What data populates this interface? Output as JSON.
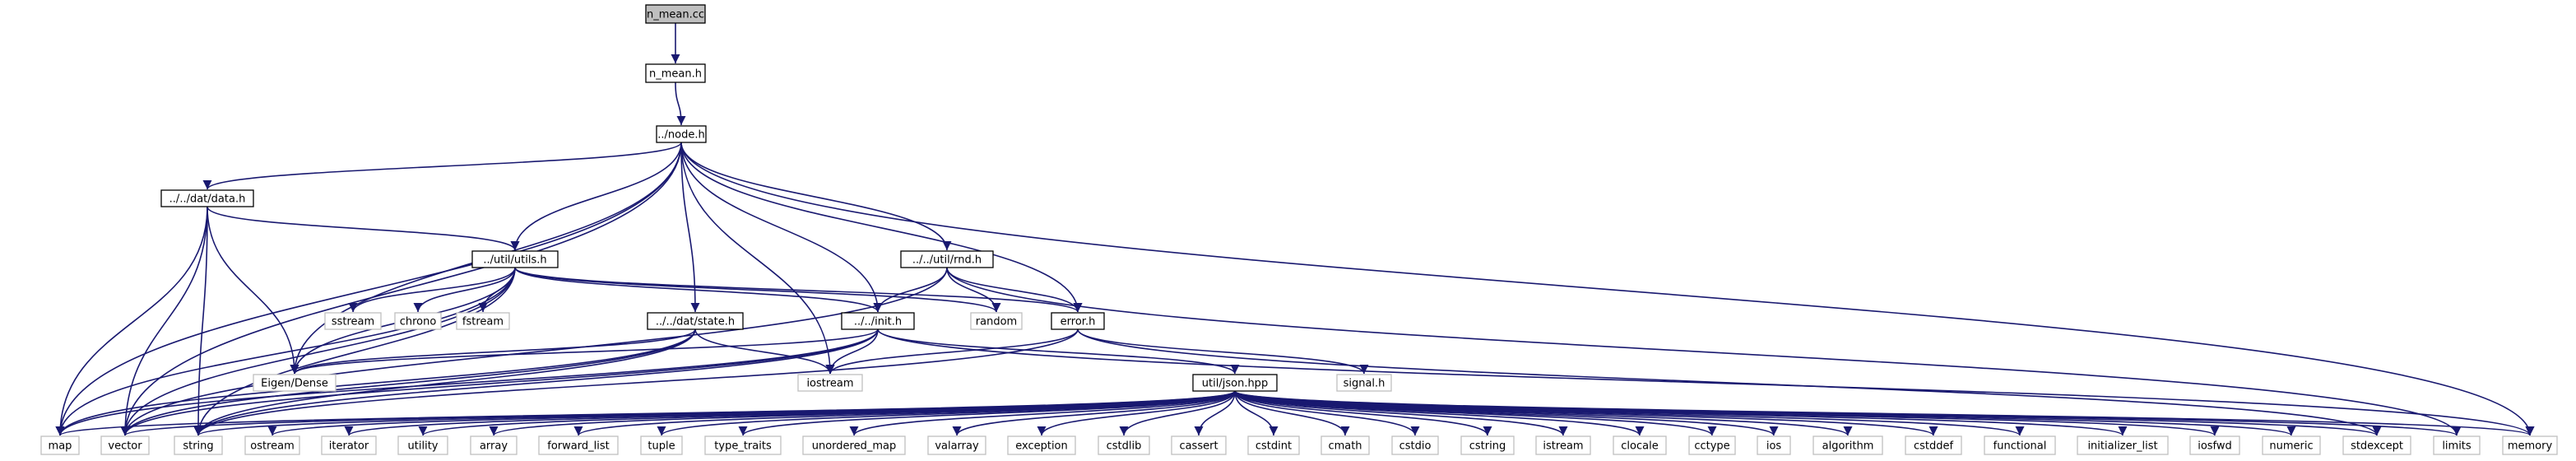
{
  "diagram": {
    "type": "include-dependency-graph",
    "colors": {
      "root_fill": "#bfbfbf",
      "node_fill": "#ffffff",
      "node_border": "#000000",
      "external_border": "#bfbfbf",
      "edge": "#191970"
    },
    "nodes": [
      {
        "id": "n_mean_cc",
        "label": "n_mean.cc",
        "kind": "root"
      },
      {
        "id": "n_mean_h",
        "label": "n_mean.h",
        "kind": "file"
      },
      {
        "id": "node_h",
        "label": "../node.h",
        "kind": "file"
      },
      {
        "id": "data_h",
        "label": "../../dat/data.h",
        "kind": "file"
      },
      {
        "id": "utils_h",
        "label": "../util/utils.h",
        "kind": "file"
      },
      {
        "id": "rnd_h",
        "label": "../../util/rnd.h",
        "kind": "file"
      },
      {
        "id": "state_h",
        "label": "../../dat/state.h",
        "kind": "file"
      },
      {
        "id": "init_h",
        "label": "../../init.h",
        "kind": "file"
      },
      {
        "id": "error_h",
        "label": "error.h",
        "kind": "file"
      },
      {
        "id": "json_hpp",
        "label": "util/json.hpp",
        "kind": "file"
      },
      {
        "id": "sstream",
        "label": "sstream",
        "kind": "system"
      },
      {
        "id": "chrono",
        "label": "chrono",
        "kind": "system"
      },
      {
        "id": "fstream",
        "label": "fstream",
        "kind": "system"
      },
      {
        "id": "random",
        "label": "random",
        "kind": "system"
      },
      {
        "id": "eigen",
        "label": "Eigen/Dense",
        "kind": "system"
      },
      {
        "id": "iostream",
        "label": "iostream",
        "kind": "system"
      },
      {
        "id": "signal_h",
        "label": "signal.h",
        "kind": "system"
      },
      {
        "id": "map",
        "label": "map",
        "kind": "system"
      },
      {
        "id": "vector",
        "label": "vector",
        "kind": "system"
      },
      {
        "id": "string",
        "label": "string",
        "kind": "system"
      },
      {
        "id": "ostream",
        "label": "ostream",
        "kind": "system"
      },
      {
        "id": "iterator",
        "label": "iterator",
        "kind": "system"
      },
      {
        "id": "utility",
        "label": "utility",
        "kind": "system"
      },
      {
        "id": "array",
        "label": "array",
        "kind": "system"
      },
      {
        "id": "forward_list",
        "label": "forward_list",
        "kind": "system"
      },
      {
        "id": "tuple",
        "label": "tuple",
        "kind": "system"
      },
      {
        "id": "type_traits",
        "label": "type_traits",
        "kind": "system"
      },
      {
        "id": "unordered_map",
        "label": "unordered_map",
        "kind": "system"
      },
      {
        "id": "valarray",
        "label": "valarray",
        "kind": "system"
      },
      {
        "id": "exception",
        "label": "exception",
        "kind": "system"
      },
      {
        "id": "cstdlib",
        "label": "cstdlib",
        "kind": "system"
      },
      {
        "id": "cassert",
        "label": "cassert",
        "kind": "system"
      },
      {
        "id": "cstdint",
        "label": "cstdint",
        "kind": "system"
      },
      {
        "id": "cmath",
        "label": "cmath",
        "kind": "system"
      },
      {
        "id": "cstdio",
        "label": "cstdio",
        "kind": "system"
      },
      {
        "id": "cstring",
        "label": "cstring",
        "kind": "system"
      },
      {
        "id": "istream",
        "label": "istream",
        "kind": "system"
      },
      {
        "id": "clocale",
        "label": "clocale",
        "kind": "system"
      },
      {
        "id": "cctype",
        "label": "cctype",
        "kind": "system"
      },
      {
        "id": "ios",
        "label": "ios",
        "kind": "system"
      },
      {
        "id": "algorithm",
        "label": "algorithm",
        "kind": "system"
      },
      {
        "id": "cstddef",
        "label": "cstddef",
        "kind": "system"
      },
      {
        "id": "functional",
        "label": "functional",
        "kind": "system"
      },
      {
        "id": "initializer_list",
        "label": "initializer_list",
        "kind": "system"
      },
      {
        "id": "iosfwd",
        "label": "iosfwd",
        "kind": "system"
      },
      {
        "id": "numeric",
        "label": "numeric",
        "kind": "system"
      },
      {
        "id": "stdexcept",
        "label": "stdexcept",
        "kind": "system"
      },
      {
        "id": "limits",
        "label": "limits",
        "kind": "system"
      },
      {
        "id": "memory",
        "label": "memory",
        "kind": "system"
      }
    ],
    "edges": [
      [
        "n_mean_cc",
        "n_mean_h"
      ],
      [
        "n_mean_h",
        "node_h"
      ],
      [
        "node_h",
        "data_h"
      ],
      [
        "node_h",
        "utils_h"
      ],
      [
        "node_h",
        "state_h"
      ],
      [
        "node_h",
        "rnd_h"
      ],
      [
        "node_h",
        "init_h"
      ],
      [
        "node_h",
        "error_h"
      ],
      [
        "node_h",
        "eigen"
      ],
      [
        "node_h",
        "iostream"
      ],
      [
        "node_h",
        "map"
      ],
      [
        "node_h",
        "vector"
      ],
      [
        "node_h",
        "memory"
      ],
      [
        "data_h",
        "utils_h"
      ],
      [
        "data_h",
        "eigen"
      ],
      [
        "data_h",
        "map"
      ],
      [
        "data_h",
        "vector"
      ],
      [
        "data_h",
        "string"
      ],
      [
        "utils_h",
        "sstream"
      ],
      [
        "utils_h",
        "chrono"
      ],
      [
        "utils_h",
        "fstream"
      ],
      [
        "utils_h",
        "random"
      ],
      [
        "utils_h",
        "eigen"
      ],
      [
        "utils_h",
        "init_h"
      ],
      [
        "utils_h",
        "error_h"
      ],
      [
        "utils_h",
        "map"
      ],
      [
        "utils_h",
        "vector"
      ],
      [
        "utils_h",
        "string"
      ],
      [
        "rnd_h",
        "random"
      ],
      [
        "rnd_h",
        "init_h"
      ],
      [
        "rnd_h",
        "error_h"
      ],
      [
        "rnd_h",
        "vector"
      ],
      [
        "rnd_h",
        "limits"
      ],
      [
        "state_h",
        "eigen"
      ],
      [
        "state_h",
        "iostream"
      ],
      [
        "state_h",
        "map"
      ],
      [
        "state_h",
        "vector"
      ],
      [
        "state_h",
        "string"
      ],
      [
        "init_h",
        "iostream"
      ],
      [
        "init_h",
        "json_hpp"
      ],
      [
        "init_h",
        "eigen"
      ],
      [
        "init_h",
        "map"
      ],
      [
        "init_h",
        "vector"
      ],
      [
        "init_h",
        "string"
      ],
      [
        "init_h",
        "memory"
      ],
      [
        "error_h",
        "iostream"
      ],
      [
        "error_h",
        "signal_h"
      ],
      [
        "error_h",
        "string"
      ],
      [
        "error_h",
        "stdexcept"
      ],
      [
        "json_hpp",
        "map"
      ],
      [
        "json_hpp",
        "vector"
      ],
      [
        "json_hpp",
        "string"
      ],
      [
        "json_hpp",
        "ostream"
      ],
      [
        "json_hpp",
        "iterator"
      ],
      [
        "json_hpp",
        "utility"
      ],
      [
        "json_hpp",
        "array"
      ],
      [
        "json_hpp",
        "forward_list"
      ],
      [
        "json_hpp",
        "tuple"
      ],
      [
        "json_hpp",
        "type_traits"
      ],
      [
        "json_hpp",
        "unordered_map"
      ],
      [
        "json_hpp",
        "valarray"
      ],
      [
        "json_hpp",
        "exception"
      ],
      [
        "json_hpp",
        "cstdlib"
      ],
      [
        "json_hpp",
        "cassert"
      ],
      [
        "json_hpp",
        "cstdint"
      ],
      [
        "json_hpp",
        "cmath"
      ],
      [
        "json_hpp",
        "cstdio"
      ],
      [
        "json_hpp",
        "cstring"
      ],
      [
        "json_hpp",
        "istream"
      ],
      [
        "json_hpp",
        "clocale"
      ],
      [
        "json_hpp",
        "cctype"
      ],
      [
        "json_hpp",
        "ios"
      ],
      [
        "json_hpp",
        "algorithm"
      ],
      [
        "json_hpp",
        "cstddef"
      ],
      [
        "json_hpp",
        "functional"
      ],
      [
        "json_hpp",
        "initializer_list"
      ],
      [
        "json_hpp",
        "iosfwd"
      ],
      [
        "json_hpp",
        "numeric"
      ],
      [
        "json_hpp",
        "stdexcept"
      ],
      [
        "json_hpp",
        "limits"
      ],
      [
        "json_hpp",
        "memory"
      ]
    ]
  }
}
